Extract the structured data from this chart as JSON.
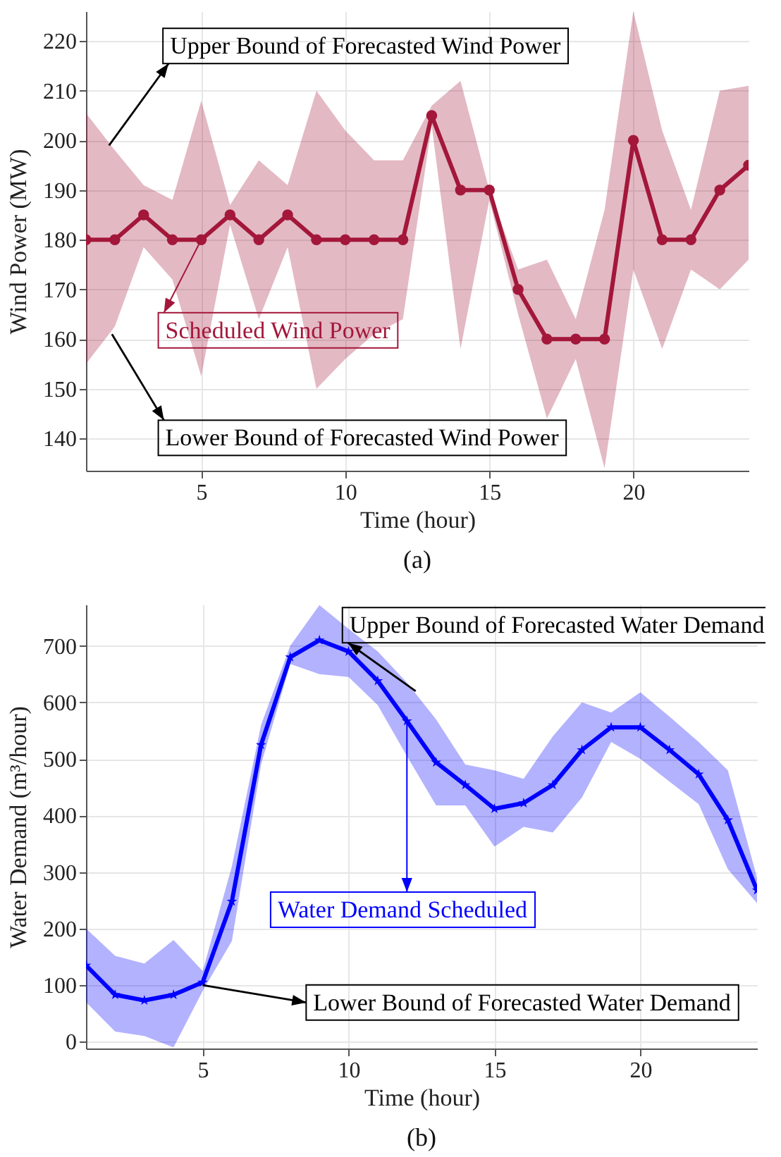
{
  "chart_data": [
    {
      "type": "line",
      "title": "(a)",
      "xlabel": "Time (hour)",
      "ylabel": "Wind Power (MW)",
      "x": [
        1,
        2,
        3,
        4,
        5,
        6,
        7,
        8,
        9,
        10,
        11,
        12,
        13,
        14,
        15,
        16,
        17,
        18,
        19,
        20,
        21,
        22,
        23,
        24
      ],
      "series": [
        {
          "type": "line",
          "name": "Scheduled Wind Power",
          "color": "#a3173a",
          "values": [
            180,
            180,
            185,
            180,
            180,
            185,
            180,
            185,
            180,
            180,
            180,
            180,
            205,
            190,
            190,
            170,
            160,
            160,
            160,
            200,
            180,
            180,
            190,
            195
          ],
          "lower": [
            155,
            162.5,
            178.5,
            172,
            152.5,
            183,
            164,
            178.5,
            150,
            156,
            161,
            164,
            203,
            158,
            188,
            165,
            144,
            156,
            134,
            174,
            158,
            174,
            170,
            176
          ],
          "upper": [
            205.5,
            198,
            191,
            188,
            208,
            187,
            196,
            191,
            210,
            202,
            196,
            196,
            207,
            212,
            190,
            174,
            176,
            164,
            186,
            226,
            202,
            186,
            210,
            211
          ]
        }
      ],
      "annotations": [
        {
          "text": "Upper Bound of Forecasted Wind Power",
          "x": 1.8,
          "y": 199
        },
        {
          "text": "Lower Bound of Forecasted Wind Power",
          "x": 1.9,
          "y": 161
        }
      ],
      "xlim": [
        1,
        24
      ],
      "ylim": [
        133.5,
        226
      ],
      "xticks": [
        5,
        10,
        15,
        20
      ],
      "yticks": [
        140,
        150,
        160,
        170,
        180,
        190,
        200,
        210,
        220
      ],
      "grid": true,
      "marker": "circle"
    },
    {
      "type": "line",
      "title": "(b)",
      "xlabel": "Time (hour)",
      "ylabel": "Water Demand (m³/hour)",
      "x": [
        1,
        2,
        3,
        4,
        5,
        6,
        7,
        8,
        9,
        10,
        11,
        12,
        13,
        14,
        15,
        16,
        17,
        18,
        19,
        20,
        21,
        22,
        23,
        24
      ],
      "series": [
        {
          "type": "line",
          "name": "Water Demand Scheduled",
          "color": "#0000ff",
          "values": [
            135,
            83,
            73,
            83,
            105,
            248,
            525,
            680,
            710,
            690,
            638,
            567,
            494,
            454,
            412,
            422,
            454,
            516,
            556,
            556,
            516,
            473,
            392,
            268
          ],
          "lower": [
            70,
            18,
            10,
            -10,
            90,
            178,
            490,
            668,
            650,
            645,
            595,
            505,
            418,
            418,
            345,
            380,
            370,
            432,
            530,
            500,
            460,
            420,
            305,
            245
          ],
          "upper": [
            200,
            152,
            138,
            180,
            125,
            310,
            560,
            700,
            772,
            730,
            690,
            635,
            570,
            490,
            480,
            465,
            540,
            600,
            582,
            618,
            575,
            530,
            480,
            290
          ]
        }
      ],
      "annotations": [
        {
          "text": "Upper Bound of Forecasted Water Demand",
          "x": 12.3,
          "y": 620
        },
        {
          "text": "Lower Bound of Forecasted Water Demand",
          "x": 5,
          "y": 100
        }
      ],
      "xlim": [
        1,
        24
      ],
      "ylim": [
        -12,
        773
      ],
      "xticks": [
        5,
        10,
        15,
        20
      ],
      "yticks": [
        0,
        100,
        200,
        300,
        400,
        500,
        600,
        700
      ],
      "grid": true,
      "marker": "star"
    }
  ]
}
